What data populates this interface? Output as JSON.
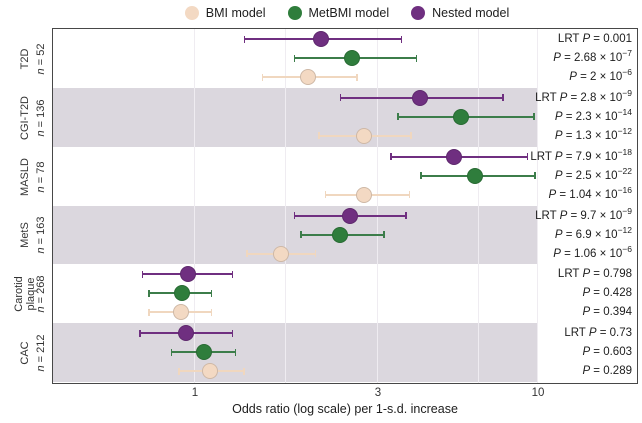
{
  "figure": {
    "background": "#ffffff"
  },
  "legend": {
    "items": [
      {
        "label": "BMI model",
        "color": "#F3D9C3",
        "bar_color": "#F0D7BF"
      },
      {
        "label": "MetBMI model",
        "color": "#2F7D3C",
        "bar_color": "#3C7D4A"
      },
      {
        "label": "Nested model",
        "color": "#6F2F80",
        "bar_color": "#6F2F80"
      }
    ]
  },
  "axis": {
    "label": "Odds ratio (log scale) per 1-s.d. increase",
    "scale": "log",
    "range": [
      0.62,
      10
    ],
    "ticks": [
      {
        "value": 1,
        "label": "1"
      },
      {
        "value": 3,
        "label": "3"
      },
      {
        "value": 10,
        "label": "10"
      }
    ],
    "minor_gridlines": [
      1.73,
      6.4
    ]
  },
  "labels": {
    "p_symbol": "P",
    "n_symbol": "n",
    "lrt_prefix": "LRT"
  },
  "chart_data": {
    "type": "scatter",
    "subtype": "forest-plot-odds-ratio-with-95ci",
    "band_color": "#DBD7DE",
    "series_names": [
      "Nested model",
      "MetBMI model",
      "BMI model"
    ],
    "rows": [
      {
        "outcome": "T2D",
        "n": "= 52",
        "shaded": false,
        "points": [
          {
            "model": "Nested model",
            "or": 2.14,
            "ci_low": 1.35,
            "ci_high": 3.6
          },
          {
            "model": "MetBMI model",
            "or": 2.58,
            "ci_low": 1.82,
            "ci_high": 4.03
          },
          {
            "model": "BMI model",
            "or": 1.98,
            "ci_low": 1.5,
            "ci_high": 2.66
          }
        ],
        "stats": [
          "LRT P = 0.001",
          "P = 2.68 × 10^−7",
          "P = 2 × 10^−6"
        ]
      },
      {
        "outcome": "CGI-T2D",
        "n": "= 136",
        "shaded": true,
        "points": [
          {
            "model": "Nested model",
            "or": 4.12,
            "ci_low": 2.4,
            "ci_high": 7.74
          },
          {
            "model": "MetBMI model",
            "or": 5.64,
            "ci_low": 3.49,
            "ci_high": 9.77
          },
          {
            "model": "BMI model",
            "or": 2.77,
            "ci_low": 2.11,
            "ci_high": 3.87
          }
        ],
        "stats": [
          "LRT P = 2.8 × 10^−9",
          "P = 2.3 × 10^−14",
          "P = 1.3 × 10^−12"
        ]
      },
      {
        "outcome": "MASLD",
        "n": "= 78",
        "shaded": false,
        "points": [
          {
            "model": "Nested model",
            "or": 5.35,
            "ci_low": 3.31,
            "ci_high": 9.28
          },
          {
            "model": "MetBMI model",
            "or": 6.27,
            "ci_low": 4.15,
            "ci_high": 9.85
          },
          {
            "model": "BMI model",
            "or": 2.77,
            "ci_low": 2.19,
            "ci_high": 3.82
          }
        ],
        "stats": [
          "LRT P = 7.9 × 10^−18",
          "P = 2.5 × 10^−22",
          "P = 1.04 × 10^−16"
        ]
      },
      {
        "outcome": "MetS",
        "n": "= 163",
        "shaded": true,
        "points": [
          {
            "model": "Nested model",
            "or": 2.54,
            "ci_low": 1.82,
            "ci_high": 3.73
          },
          {
            "model": "MetBMI model",
            "or": 2.4,
            "ci_low": 1.89,
            "ci_high": 3.16
          },
          {
            "model": "BMI model",
            "or": 1.68,
            "ci_low": 1.37,
            "ci_high": 2.07
          }
        ],
        "stats": [
          "LRT P = 9.7 × 10^−9",
          "P = 6.9 × 10^−12",
          "P = 1.06 × 10^−6"
        ]
      },
      {
        "outcome": "Carotid plaque",
        "n": "= 268",
        "shaded": false,
        "points": [
          {
            "model": "Nested model",
            "or": 0.96,
            "ci_low": 0.73,
            "ci_high": 1.26
          },
          {
            "model": "MetBMI model",
            "or": 0.93,
            "ci_low": 0.76,
            "ci_high": 1.11
          },
          {
            "model": "BMI model",
            "or": 0.92,
            "ci_low": 0.76,
            "ci_high": 1.11
          }
        ],
        "stats": [
          "LRT P = 0.798",
          "P = 0.428",
          "P = 0.394"
        ]
      },
      {
        "outcome": "CAC",
        "n": "= 212",
        "shaded": true,
        "points": [
          {
            "model": "Nested model",
            "or": 0.95,
            "ci_low": 0.72,
            "ci_high": 1.26
          },
          {
            "model": "MetBMI model",
            "or": 1.06,
            "ci_low": 0.87,
            "ci_high": 1.28
          },
          {
            "model": "BMI model",
            "or": 1.1,
            "ci_low": 0.91,
            "ci_high": 1.35
          }
        ],
        "stats": [
          "LRT P = 0.73",
          "P = 0.603",
          "P = 0.289"
        ]
      }
    ]
  }
}
